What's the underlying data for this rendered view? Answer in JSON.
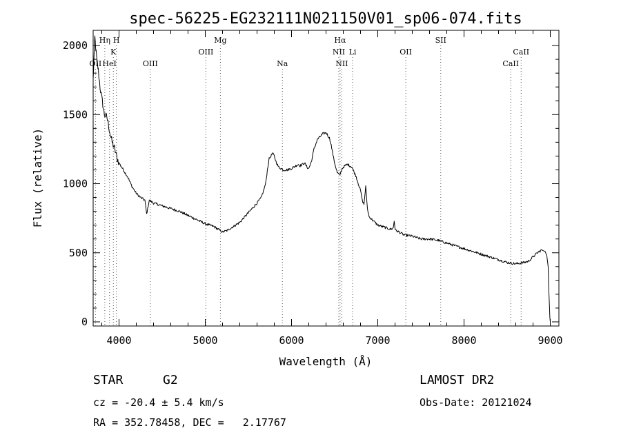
{
  "chart_data": {
    "type": "line",
    "title": "spec-56225-EG232111N021150V01_sp06-074.fits",
    "xlabel": "Wavelength (Å)",
    "ylabel": "Flux (relative)",
    "xlim": [
      3700,
      9100
    ],
    "ylim": [
      -30,
      2110
    ],
    "xticks": [
      4000,
      5000,
      6000,
      7000,
      8000,
      9000
    ],
    "yticks": [
      0,
      500,
      1000,
      1500,
      2000
    ],
    "grid": false,
    "series": [
      {
        "x": [
          3700,
          3710,
          3720,
          3730,
          3745,
          3760,
          3780,
          3800,
          3830,
          3860,
          3880,
          3900,
          3920,
          3950,
          3980,
          4000,
          4050,
          4100,
          4150,
          4200,
          4250,
          4300,
          4320,
          4350,
          4400,
          4500,
          4600,
          4700,
          4800,
          4900,
          5000,
          5100,
          5150,
          5200,
          5250,
          5300,
          5400,
          5500,
          5600,
          5650,
          5700,
          5720,
          5740,
          5760,
          5780,
          5800,
          5820,
          5850,
          5880,
          5900,
          5950,
          6000,
          6050,
          6080,
          6100,
          6150,
          6180,
          6200,
          6230,
          6260,
          6300,
          6330,
          6360,
          6400,
          6420,
          6440,
          6460,
          6480,
          6500,
          6530,
          6560,
          6580,
          6600,
          6620,
          6650,
          6700,
          6750,
          6800,
          6820,
          6840,
          6860,
          6880,
          6900,
          6950,
          7000,
          7050,
          7100,
          7150,
          7180,
          7190,
          7200,
          7210,
          7250,
          7300,
          7400,
          7500,
          7600,
          7700,
          7800,
          7900,
          8000,
          8100,
          8200,
          8300,
          8400,
          8500,
          8550,
          8600,
          8700,
          8750,
          8800,
          8850,
          8900,
          8940,
          8960,
          8975,
          8985,
          8995,
          9000
        ],
        "y": [
          1750,
          1920,
          2060,
          1980,
          1880,
          1820,
          1700,
          1620,
          1500,
          1480,
          1420,
          1350,
          1300,
          1250,
          1180,
          1150,
          1100,
          1050,
          980,
          930,
          900,
          880,
          780,
          880,
          860,
          840,
          820,
          800,
          770,
          740,
          710,
          690,
          670,
          650,
          660,
          680,
          720,
          790,
          860,
          900,
          1000,
          1100,
          1180,
          1200,
          1220,
          1200,
          1160,
          1120,
          1110,
          1100,
          1100,
          1110,
          1130,
          1140,
          1130,
          1150,
          1120,
          1110,
          1160,
          1250,
          1320,
          1340,
          1360,
          1370,
          1350,
          1330,
          1280,
          1210,
          1150,
          1080,
          1060,
          1100,
          1120,
          1130,
          1140,
          1120,
          1050,
          950,
          880,
          850,
          980,
          820,
          760,
          730,
          700,
          690,
          680,
          670,
          680,
          730,
          680,
          660,
          650,
          630,
          620,
          600,
          600,
          590,
          570,
          550,
          530,
          510,
          490,
          470,
          450,
          430,
          425,
          420,
          430,
          440,
          470,
          500,
          520,
          510,
          480,
          400,
          200,
          30,
          0
        ]
      }
    ]
  },
  "line_labels": [
    {
      "label": "OII",
      "wavelength": 3727,
      "row": 3
    },
    {
      "label": "Hη",
      "wavelength": 3835,
      "row": 1
    },
    {
      "label": "HeI",
      "wavelength": 3889,
      "row": 3
    },
    {
      "label": "K",
      "wavelength": 3934,
      "row": 2
    },
    {
      "label": "H",
      "wavelength": 3969,
      "row": 1
    },
    {
      "label": "OIII",
      "wavelength": 4363,
      "row": 3
    },
    {
      "label": "OIII",
      "wavelength": 5007,
      "row": 2
    },
    {
      "label": "Mg",
      "wavelength": 5175,
      "row": 1
    },
    {
      "label": "Na",
      "wavelength": 5894,
      "row": 3
    },
    {
      "label": "NII",
      "wavelength": 6548,
      "row": 2
    },
    {
      "label": "Hα",
      "wavelength": 6563,
      "row": 1
    },
    {
      "label": "NII",
      "wavelength": 6583,
      "row": 3
    },
    {
      "label": "Li",
      "wavelength": 6708,
      "row": 2
    },
    {
      "label": "OII",
      "wavelength": 7325,
      "row": 2
    },
    {
      "label": "SII",
      "wavelength": 7730,
      "row": 1
    },
    {
      "label": "CaII",
      "wavelength": 8542,
      "row": 3
    },
    {
      "label": "CaII",
      "wavelength": 8662,
      "row": 2
    }
  ],
  "info": {
    "object_class": "STAR",
    "subclass": "G2",
    "survey": "LAMOST DR2",
    "redshift": "cz = -20.4 ± 5.4 km/s",
    "obs_date": "Obs-Date: 20121024",
    "coords": "RA = 352.78458, DEC =   2.17767"
  },
  "colors": {
    "line": "#000000",
    "axis": "#000000",
    "background": "#ffffff"
  }
}
